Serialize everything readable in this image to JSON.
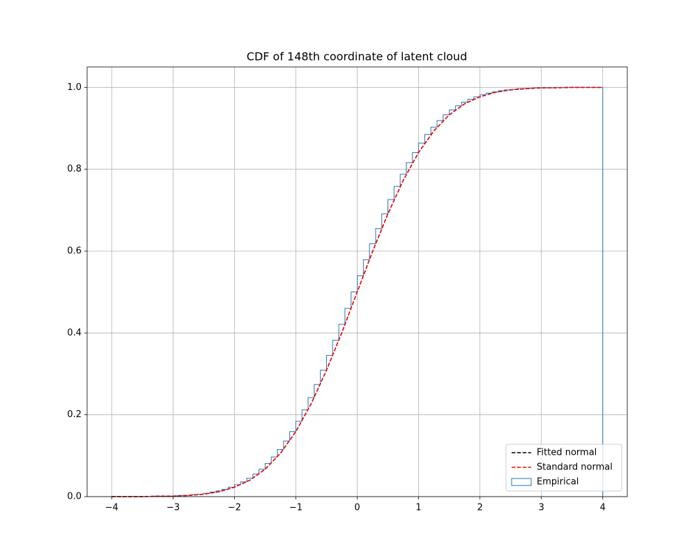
{
  "chart_data": {
    "type": "line",
    "title": "CDF of 148th coordinate of latent cloud",
    "xlim": [
      -4.4,
      4.4
    ],
    "ylim": [
      0,
      1.05
    ],
    "xticks": [
      {
        "value": -4,
        "label": "−4"
      },
      {
        "value": -3,
        "label": "−3"
      },
      {
        "value": -2,
        "label": "−2"
      },
      {
        "value": -1,
        "label": "−1"
      },
      0,
      1,
      2,
      3,
      4
    ],
    "yticks": [
      {
        "value": 0,
        "label": "0.0"
      },
      0.2,
      0.4,
      0.6,
      0.8,
      {
        "value": 1,
        "label": "1.0"
      }
    ],
    "grid": true,
    "legend": "lower right",
    "x": [
      -4,
      -3.75,
      -3.5,
      -3.25,
      -3,
      -2.75,
      -2.5,
      -2.25,
      -2,
      -1.75,
      -1.5,
      -1.25,
      -1,
      -0.75,
      -0.5,
      -0.25,
      0,
      0.25,
      0.5,
      0.75,
      1,
      1.25,
      1.5,
      1.75,
      2,
      2.25,
      2.5,
      2.75,
      3,
      3.25,
      3.5,
      3.75,
      4
    ],
    "series": [
      {
        "name": "Fitted normal",
        "color": "#000000",
        "dashed": true,
        "values": [
          0,
          0,
          0,
          0.001,
          0.001,
          0.003,
          0.006,
          0.012,
          0.023,
          0.04,
          0.067,
          0.106,
          0.159,
          0.227,
          0.309,
          0.401,
          0.5,
          0.599,
          0.691,
          0.773,
          0.841,
          0.894,
          0.933,
          0.96,
          0.977,
          0.988,
          0.994,
          0.997,
          0.999,
          0.999,
          1,
          1,
          1
        ]
      },
      {
        "name": "Standard normal",
        "color": "#ff0000",
        "dashed": true,
        "values": [
          0,
          0,
          0,
          0.001,
          0.001,
          0.003,
          0.006,
          0.012,
          0.023,
          0.04,
          0.067,
          0.106,
          0.159,
          0.227,
          0.309,
          0.401,
          0.5,
          0.599,
          0.691,
          0.773,
          0.841,
          0.894,
          0.933,
          0.96,
          0.977,
          0.988,
          0.994,
          0.997,
          0.999,
          0.999,
          1,
          1,
          1
        ]
      }
    ],
    "histogram": {
      "name": "Empirical",
      "color": "#1f77b4",
      "bins": [
        -4,
        -3.9,
        -3.8,
        -3.7,
        -3.6,
        -3.5,
        -3.4,
        -3.3,
        -3.2,
        -3.1,
        -3,
        -2.9,
        -2.8,
        -2.7,
        -2.6,
        -2.5,
        -2.4,
        -2.3,
        -2.2,
        -2.1,
        -2,
        -1.9,
        -1.8,
        -1.7,
        -1.6,
        -1.5,
        -1.4,
        -1.3,
        -1.2,
        -1.1,
        -1,
        -0.9,
        -0.8,
        -0.7,
        -0.6,
        -0.5,
        -0.4,
        -0.3,
        -0.2,
        -0.1,
        0,
        0.1,
        0.2,
        0.3,
        0.4,
        0.5,
        0.6,
        0.7,
        0.8,
        0.9,
        1,
        1.1,
        1.2,
        1.3,
        1.4,
        1.5,
        1.6,
        1.7,
        1.8,
        1.9,
        2,
        2.1,
        2.2,
        2.3,
        2.4,
        2.5,
        2.6,
        2.7,
        2.8,
        2.9,
        3,
        3.1,
        3.2,
        3.3,
        3.4,
        3.5,
        3.6,
        3.7,
        3.8,
        3.9,
        4
      ],
      "values": [
        0,
        0,
        0,
        0,
        0,
        0,
        0,
        0.001,
        0.001,
        0.001,
        0.002,
        0.003,
        0.003,
        0.005,
        0.006,
        0.008,
        0.011,
        0.014,
        0.018,
        0.023,
        0.029,
        0.036,
        0.045,
        0.055,
        0.067,
        0.081,
        0.097,
        0.115,
        0.136,
        0.159,
        0.184,
        0.212,
        0.242,
        0.274,
        0.309,
        0.345,
        0.382,
        0.421,
        0.46,
        0.5,
        0.54,
        0.579,
        0.618,
        0.655,
        0.691,
        0.726,
        0.758,
        0.788,
        0.816,
        0.841,
        0.864,
        0.885,
        0.903,
        0.919,
        0.933,
        0.945,
        0.955,
        0.964,
        0.971,
        0.977,
        0.982,
        0.986,
        0.989,
        0.992,
        0.994,
        0.995,
        0.997,
        0.997,
        0.998,
        0.999,
        0.999,
        0.999,
        1,
        1,
        1,
        1,
        1,
        1,
        1,
        1
      ]
    }
  }
}
